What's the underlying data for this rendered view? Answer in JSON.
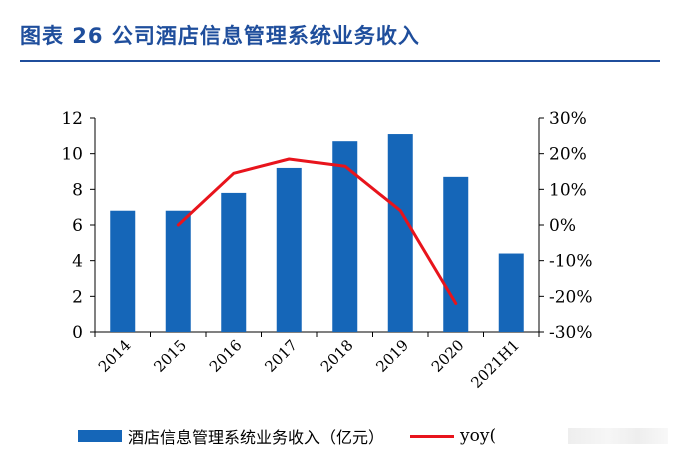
{
  "title": "图表 26  公司酒店信息管理系统业务收入",
  "colors": {
    "bar": "#1566b8",
    "line": "#e8141c",
    "title": "#1f4e9c"
  },
  "legend": {
    "bar_label": "酒店信息管理系统业务收入（亿元）",
    "line_label": "yoy("
  },
  "chart_data": {
    "type": "bar",
    "categories": [
      "2014",
      "2015",
      "2016",
      "2017",
      "2018",
      "2019",
      "2020",
      "2021H1"
    ],
    "series": [
      {
        "name": "酒店信息管理系统业务收入（亿元）",
        "type": "bar",
        "axis": "left",
        "values": [
          6.8,
          6.8,
          7.8,
          9.2,
          10.7,
          11.1,
          8.7,
          4.4
        ]
      },
      {
        "name": "yoy",
        "type": "line",
        "axis": "right",
        "values": [
          null,
          0.0,
          14.5,
          18.5,
          16.5,
          4.0,
          -22.0,
          null
        ]
      }
    ],
    "ylim": [
      0,
      12
    ],
    "yticks": [
      "0",
      "2",
      "4",
      "6",
      "8",
      "10",
      "12"
    ],
    "y2lim": [
      -30,
      30
    ],
    "y2ticks": [
      "-30%",
      "-20%",
      "-10%",
      "0%",
      "10%",
      "20%",
      "30%"
    ],
    "grid": false,
    "legend_position": "bottom"
  }
}
